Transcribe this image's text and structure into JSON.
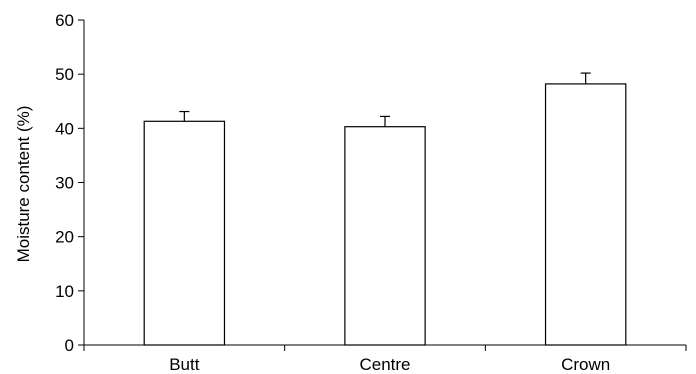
{
  "chart_data": {
    "type": "bar",
    "categories": [
      "Butt",
      "Centre",
      "Crown"
    ],
    "values": [
      41.3,
      40.3,
      48.2
    ],
    "error_plus": [
      1.8,
      1.9,
      2.0
    ],
    "ylabel": "Moisture content (%)",
    "xlabel": "",
    "ylim": [
      0,
      60
    ],
    "yticks": [
      0,
      10,
      20,
      30,
      40,
      50,
      60
    ],
    "grid": false,
    "legend": "none",
    "colors": {
      "bar_fill": "#ffffff",
      "bar_stroke": "#000000",
      "axis": "#000000"
    }
  }
}
